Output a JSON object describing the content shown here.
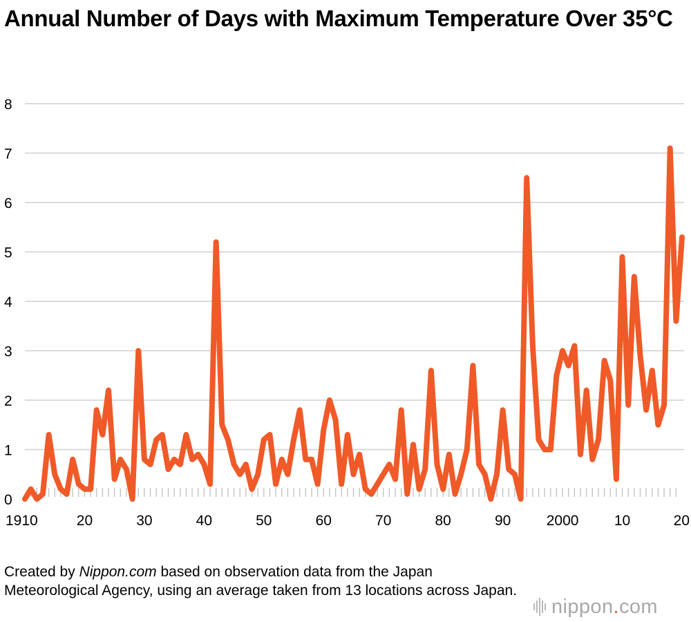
{
  "chart_data": {
    "type": "line",
    "title": "Annual Number of Days with Maximum Temperature Over 35°C",
    "xlabel": "",
    "ylabel": "",
    "ylim": [
      0,
      8
    ],
    "yticks": [
      0,
      1,
      2,
      3,
      4,
      5,
      6,
      7,
      8
    ],
    "xlim": [
      1910,
      2020
    ],
    "xticks": [
      1910,
      1920,
      1930,
      1940,
      1950,
      1960,
      1970,
      1980,
      1990,
      2000,
      2010,
      2020
    ],
    "xtick_labels": [
      "1910",
      "20",
      "30",
      "40",
      "50",
      "60",
      "70",
      "80",
      "90",
      "2000",
      "10",
      "20"
    ],
    "grid": "horizontal",
    "line_color": "#ef5a28",
    "x": [
      1910,
      1911,
      1912,
      1913,
      1914,
      1915,
      1916,
      1917,
      1918,
      1919,
      1920,
      1921,
      1922,
      1923,
      1924,
      1925,
      1926,
      1927,
      1928,
      1929,
      1930,
      1931,
      1932,
      1933,
      1934,
      1935,
      1936,
      1937,
      1938,
      1939,
      1940,
      1941,
      1942,
      1943,
      1944,
      1945,
      1946,
      1947,
      1948,
      1949,
      1950,
      1951,
      1952,
      1953,
      1954,
      1955,
      1956,
      1957,
      1958,
      1959,
      1960,
      1961,
      1962,
      1963,
      1964,
      1965,
      1966,
      1967,
      1968,
      1969,
      1970,
      1971,
      1972,
      1973,
      1974,
      1975,
      1976,
      1977,
      1978,
      1979,
      1980,
      1981,
      1982,
      1983,
      1984,
      1985,
      1986,
      1987,
      1988,
      1989,
      1990,
      1991,
      1992,
      1993,
      1994,
      1995,
      1996,
      1997,
      1998,
      1999,
      2000,
      2001,
      2002,
      2003,
      2004,
      2005,
      2006,
      2007,
      2008,
      2009,
      2010,
      2011,
      2012,
      2013,
      2014,
      2015,
      2016,
      2017,
      2018,
      2019,
      2020
    ],
    "series": [
      {
        "values": [
          0,
          0.2,
          0,
          0.1,
          1.3,
          0.5,
          0.2,
          0.1,
          0.8,
          0.3,
          0.2,
          0.2,
          1.8,
          1.3,
          2.2,
          0.4,
          0.8,
          0.6,
          0,
          3.0,
          0.8,
          0.7,
          1.2,
          1.3,
          0.6,
          0.8,
          0.7,
          1.3,
          0.8,
          0.9,
          0.7,
          0.3,
          5.2,
          1.5,
          1.2,
          0.7,
          0.5,
          0.7,
          0.2,
          0.5,
          1.2,
          1.3,
          0.3,
          0.8,
          0.5,
          1.2,
          1.8,
          0.8,
          0.8,
          0.3,
          1.4,
          2.0,
          1.6,
          0.3,
          1.3,
          0.5,
          0.9,
          0.2,
          0.1,
          0.3,
          0.5,
          0.7,
          0.4,
          1.8,
          0.1,
          1.1,
          0.2,
          0.6,
          2.6,
          0.7,
          0.2,
          0.9,
          0.1,
          0.5,
          1.0,
          2.7,
          0.7,
          0.5,
          0,
          0.5,
          1.8,
          0.6,
          0.5,
          0,
          6.5,
          3.1,
          1.2,
          1.0,
          1.0,
          2.5,
          3.0,
          2.7,
          3.1,
          0.9,
          2.2,
          0.8,
          1.2,
          2.8,
          2.4,
          0.4,
          4.9,
          1.9,
          4.5,
          2.9,
          1.8,
          2.6,
          1.5,
          1.9,
          7.1,
          3.6,
          5.3
        ]
      }
    ]
  },
  "caption": {
    "prefix": "Created by ",
    "emphasis": "Nippon.com",
    "rest": " based on observation data from the Japan Meteorological Agency, using an average taken from 13 locations across Japan."
  },
  "brand": {
    "name": "nippon",
    "dot": ".",
    "tld": "com"
  }
}
